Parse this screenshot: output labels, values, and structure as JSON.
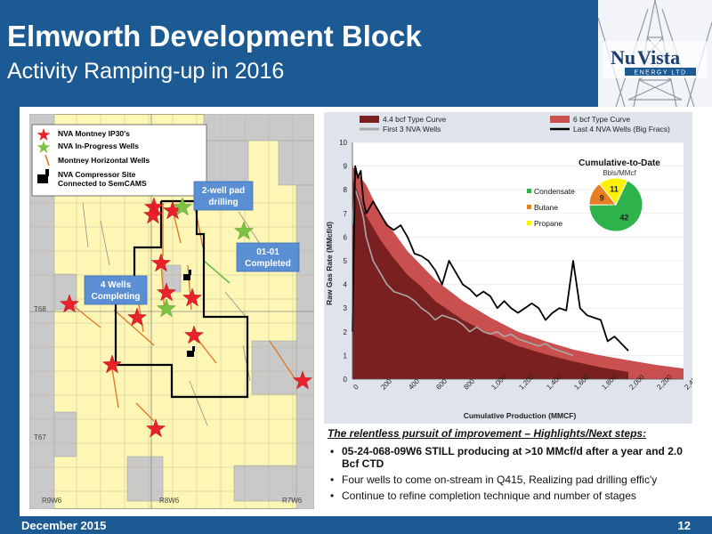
{
  "header": {
    "title": "Elmworth Development Block",
    "subtitle": "Activity Ramping-up in 2016"
  },
  "logo": {
    "name_part1": "Nu",
    "name_part2": "Vista",
    "tagline": "ENERGY LTD",
    "icon": "oil-derrick-icon"
  },
  "footer": {
    "date": "December 2015",
    "page": "12"
  },
  "map": {
    "legend": {
      "items": [
        {
          "label": "NVA Montney IP30's",
          "icon": "red-star-icon"
        },
        {
          "label": "NVA In-Progress Wells",
          "icon": "green-star-icon"
        },
        {
          "label": "Montney Horizontal Wells",
          "icon": "orange-line-icon"
        },
        {
          "label": "NVA Compressor Site",
          "icon": "compressor-icon"
        },
        {
          "label": "Connected to SemCAMS",
          "icon": ""
        }
      ]
    },
    "callouts": {
      "pad": "2-well pad drilling",
      "completed": "01-01 Completed",
      "completing": "4 Wells Completing"
    },
    "township_labels": [
      "T68",
      "T67"
    ],
    "range_labels": [
      "R9W6",
      "R8W6",
      "R7W6"
    ],
    "colors": {
      "land": "#fdf6b4",
      "unleased": "#c9c9c9",
      "callout": "#5b8fd4",
      "boundary": "#000000",
      "star_red": "#e8212a",
      "star_green": "#7dc242",
      "well": "#e07b2a"
    }
  },
  "chart_data": {
    "type": "line",
    "title": "",
    "xlabel": "Cumulative Production (MMCF)",
    "ylabel": "Raw Gas Rate (MMcf/d)",
    "xlim": [
      0,
      2400
    ],
    "ylim": [
      0,
      10
    ],
    "x_ticks": [
      "0",
      "200",
      "400",
      "600",
      "800",
      "1,000",
      "1,200",
      "1,400",
      "1,600",
      "1,800",
      "2,000",
      "2,200",
      "2,400"
    ],
    "y_ticks": [
      "0",
      "1",
      "2",
      "3",
      "4",
      "5",
      "6",
      "7",
      "8",
      "9",
      "10"
    ],
    "legend_position": "top",
    "series": [
      {
        "name": "4.4 bcf Type Curve",
        "style": "area",
        "color": "#7b2020",
        "x": [
          0,
          50,
          100,
          200,
          300,
          400,
          500,
          600,
          700,
          800,
          900,
          1000,
          1200,
          1400,
          1600,
          1800,
          2000
        ],
        "y": [
          8.5,
          7.7,
          6.9,
          5.9,
          5.1,
          4.4,
          3.9,
          3.3,
          2.9,
          2.5,
          2.2,
          1.9,
          1.4,
          1.05,
          0.75,
          0.5,
          0.3
        ]
      },
      {
        "name": "6 bcf Type Curve",
        "style": "area",
        "color": "#c9504f",
        "x": [
          0,
          100,
          200,
          400,
          600,
          800,
          1000,
          1200,
          1400,
          1600,
          1800,
          2000,
          2200,
          2400
        ],
        "y": [
          9.0,
          8.2,
          7.0,
          5.4,
          4.2,
          3.3,
          2.6,
          2.0,
          1.6,
          1.25,
          1.0,
          0.8,
          0.6,
          0.45
        ]
      },
      {
        "name": "First 3 NVA Wells",
        "style": "line",
        "color": "#a9a9a9",
        "x": [
          0,
          20,
          50,
          80,
          100,
          150,
          200,
          250,
          300,
          350,
          400,
          450,
          500,
          550,
          600,
          650,
          700,
          750,
          800,
          850,
          900,
          950,
          1000,
          1050,
          1100,
          1150,
          1200,
          1250,
          1300,
          1350,
          1400,
          1450,
          1500,
          1550,
          1600
        ],
        "y": [
          6.5,
          8.0,
          7.5,
          6.8,
          6.0,
          5.0,
          4.5,
          4.0,
          3.7,
          3.6,
          3.5,
          3.3,
          3.0,
          2.8,
          2.5,
          2.7,
          2.6,
          2.5,
          2.3,
          2.0,
          2.2,
          2.0,
          1.9,
          2.0,
          1.8,
          1.9,
          1.7,
          1.6,
          1.5,
          1.4,
          1.5,
          1.3,
          1.2,
          1.1,
          1.0
        ]
      },
      {
        "name": "Last 4 NVA Wells (Big Fracs)",
        "style": "line",
        "color": "#000000",
        "x": [
          0,
          20,
          40,
          60,
          80,
          100,
          150,
          200,
          250,
          300,
          350,
          400,
          450,
          500,
          550,
          600,
          650,
          700,
          750,
          800,
          850,
          900,
          950,
          1000,
          1050,
          1100,
          1150,
          1200,
          1250,
          1300,
          1350,
          1400,
          1450,
          1500,
          1550,
          1600,
          1650,
          1700,
          1750,
          1800,
          1850,
          1900,
          1950,
          2000
        ],
        "y": [
          2.0,
          9.0,
          8.5,
          8.8,
          7.5,
          7.0,
          7.5,
          7.0,
          6.5,
          6.3,
          6.5,
          6.0,
          5.3,
          5.2,
          5.0,
          4.6,
          4.0,
          5.0,
          4.5,
          4.0,
          3.8,
          3.5,
          3.7,
          3.5,
          3.0,
          3.3,
          3.0,
          2.8,
          3.0,
          3.2,
          3.0,
          2.5,
          2.8,
          3.0,
          2.9,
          5.0,
          3.0,
          2.7,
          2.6,
          2.5,
          1.6,
          1.8,
          1.5,
          1.2
        ]
      }
    ],
    "inset_pie": {
      "type": "pie",
      "title": "Cumulative-to-Date",
      "subtitle": "Bbls/MMcf",
      "legend_position": "left",
      "slices": [
        {
          "label": "Condensate",
          "value": 42,
          "color": "#2db34a"
        },
        {
          "label": "Butane",
          "value": 9,
          "color": "#e67e22"
        },
        {
          "label": "Propane",
          "value": 11,
          "color": "#fff200"
        }
      ]
    }
  },
  "highlights": {
    "heading": "The relentless pursuit of improvement – Highlights/Next steps:",
    "items": [
      {
        "text": "05-24-068-09W6 STILL producing at >10 MMcf/d after a year and 2.0 Bcf CTD",
        "bold": true
      },
      {
        "text": "Four wells to come on-stream in Q415, Realizing pad drilling effic'y",
        "bold": false
      },
      {
        "text": "Continue to refine completion technique and number of stages",
        "bold": false
      }
    ]
  }
}
